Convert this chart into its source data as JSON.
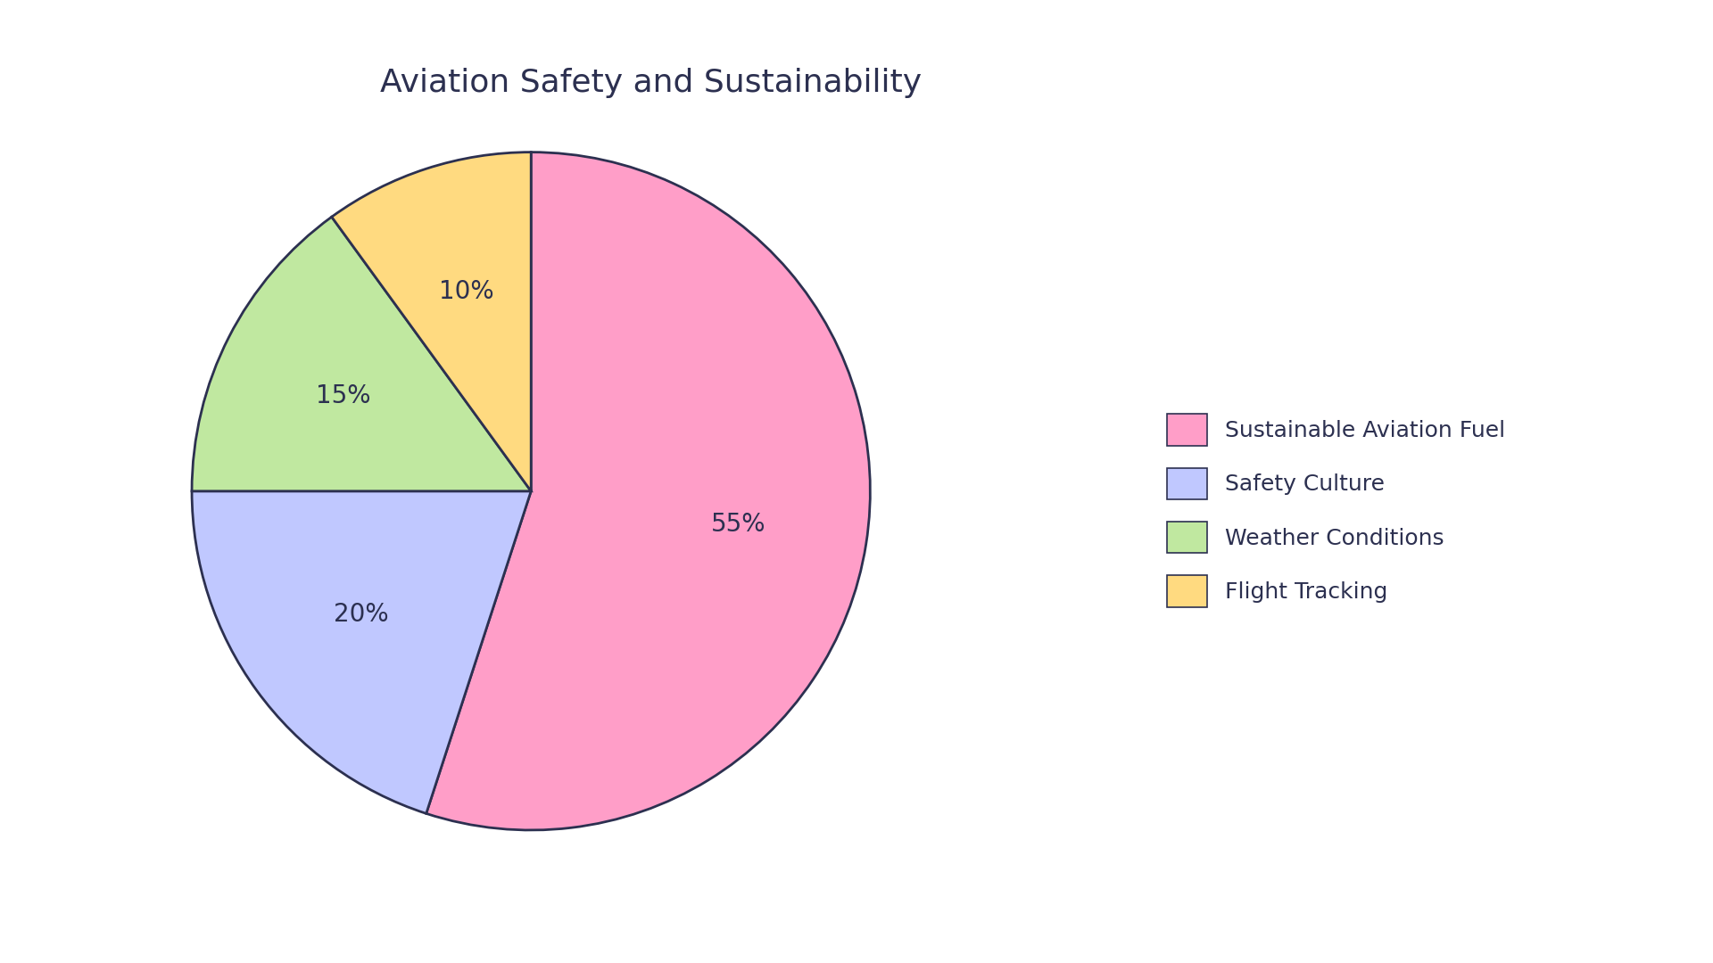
{
  "title": "Aviation Safety and Sustainability",
  "labels": [
    "Sustainable Aviation Fuel",
    "Safety Culture",
    "Weather Conditions",
    "Flight Tracking"
  ],
  "values": [
    55,
    20,
    15,
    10
  ],
  "colors": [
    "#FF9EC8",
    "#C0C8FF",
    "#C0E8A0",
    "#FFDA80"
  ],
  "pct_labels": [
    "55%",
    "20%",
    "15%",
    "10%"
  ],
  "edge_color": "#2C3050",
  "edge_width": 2.0,
  "background_color": "#FFFFFF",
  "title_fontsize": 26,
  "pct_fontsize": 20,
  "legend_fontsize": 18,
  "startangle": 90
}
